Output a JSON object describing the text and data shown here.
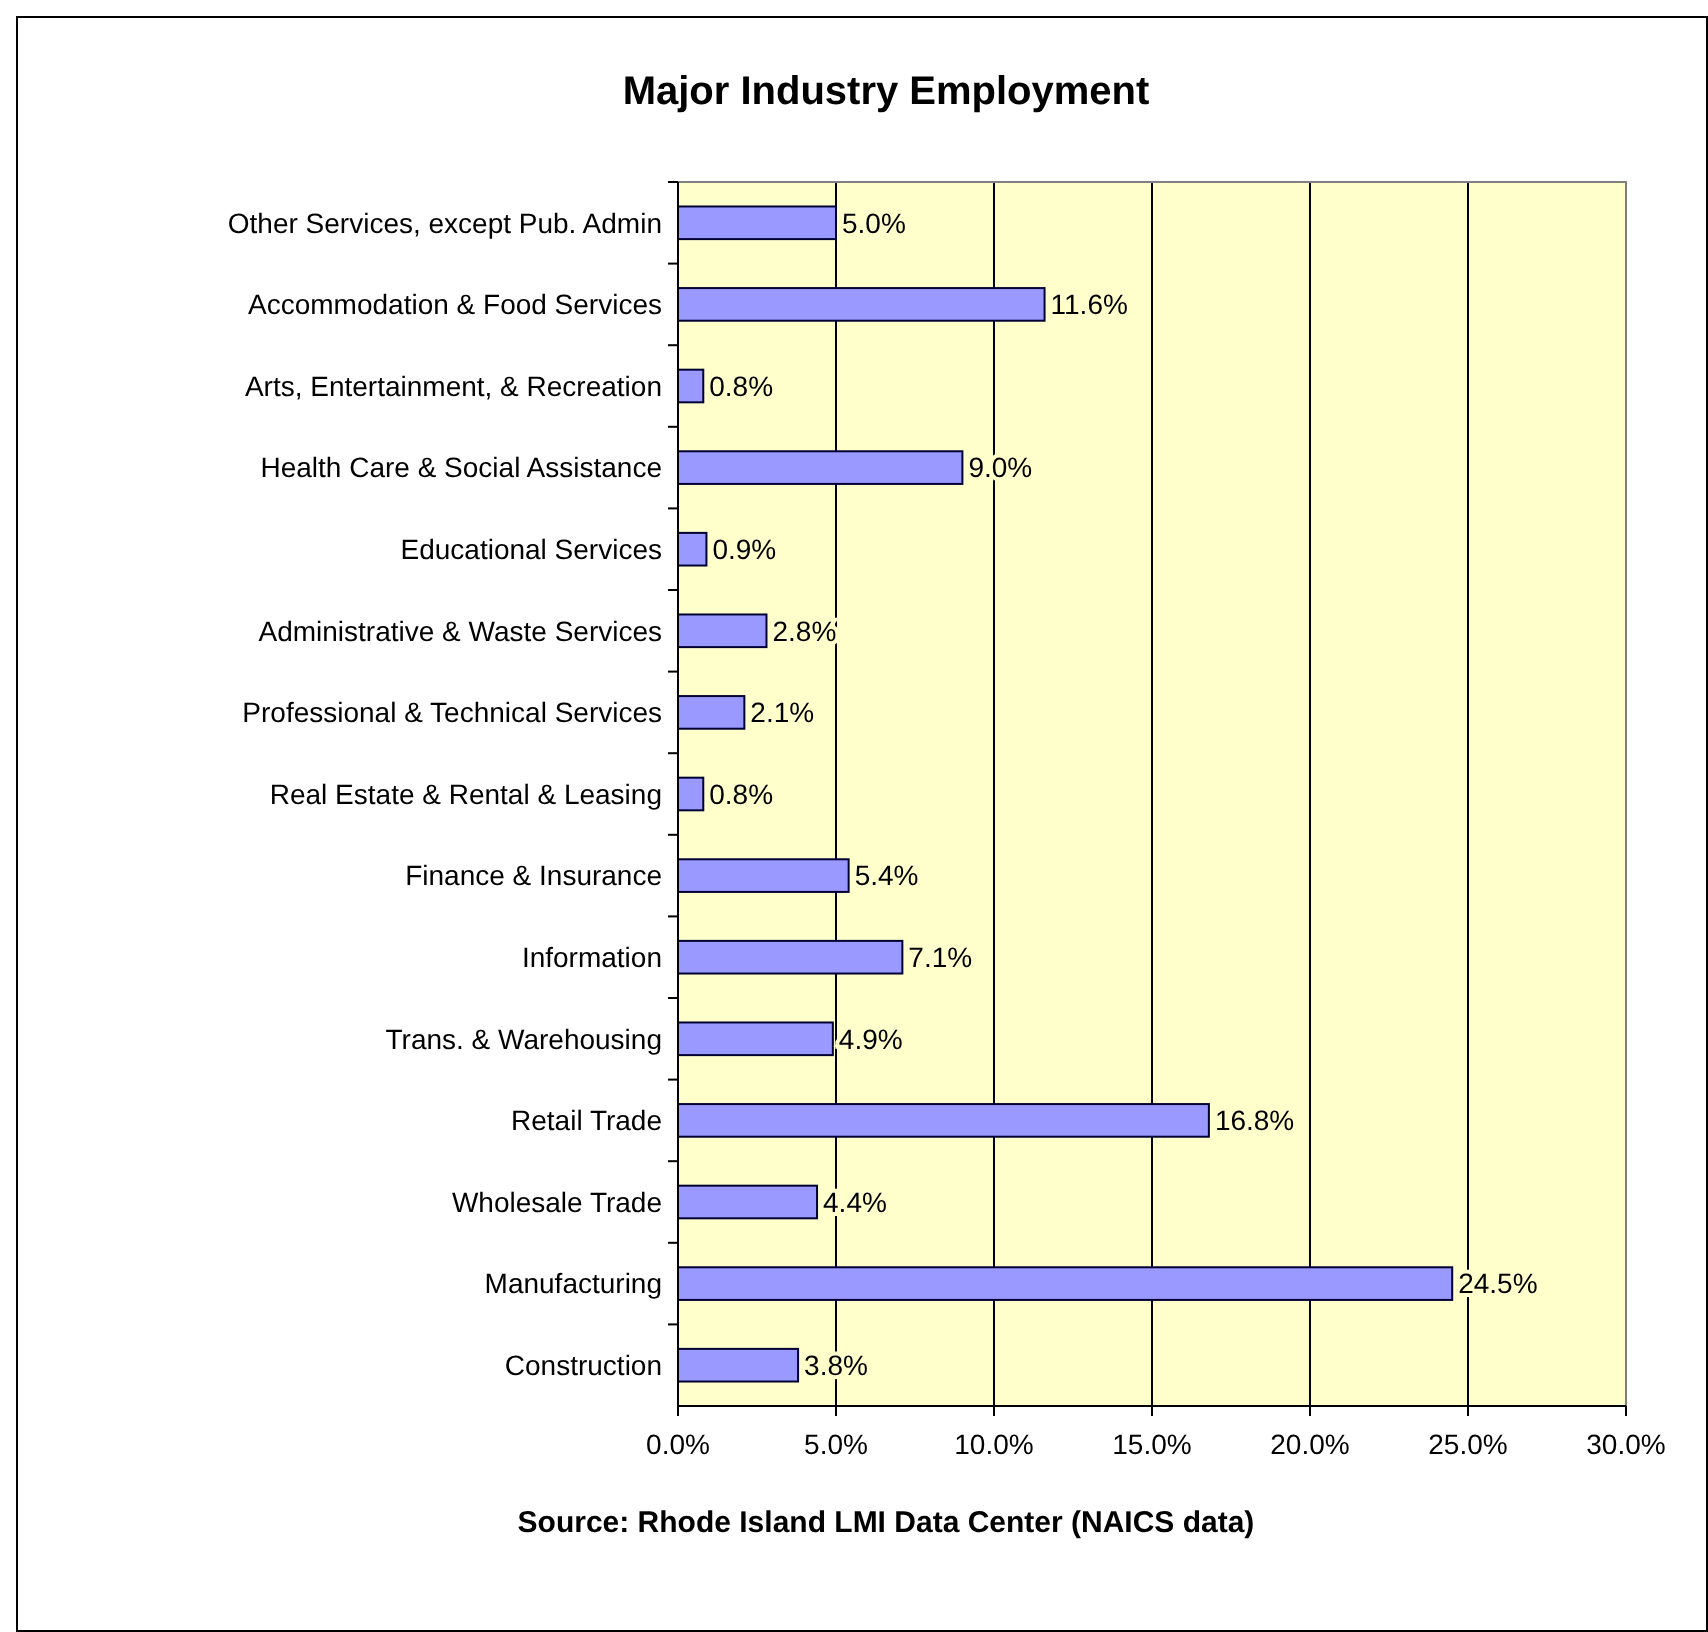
{
  "chart_data": {
    "type": "bar",
    "orientation": "horizontal",
    "title": "Major Industry Employment",
    "categories": [
      "Other Services, except Pub. Admin",
      "Accommodation & Food Services",
      "Arts, Entertainment, & Recreation",
      "Health Care & Social Assistance",
      "Educational Services",
      "Administrative & Waste Services",
      "Professional & Technical Services",
      "Real Estate & Rental & Leasing",
      "Finance & Insurance",
      "Information",
      "Trans. & Warehousing",
      "Retail Trade",
      "Wholesale Trade",
      "Manufacturing",
      "Construction"
    ],
    "values": [
      5.0,
      11.6,
      0.8,
      9.0,
      0.9,
      2.8,
      2.1,
      0.8,
      5.4,
      7.1,
      4.9,
      16.8,
      4.4,
      24.5,
      3.8
    ],
    "value_labels": [
      "5.0%",
      "11.6%",
      "0.8%",
      "9.0%",
      "0.9%",
      "2.8%",
      "2.1%",
      "0.8%",
      "5.4%",
      "7.1%",
      "4.9%",
      "16.8%",
      "4.4%",
      "24.5%",
      "3.8%"
    ],
    "color": "#9999ff",
    "xlim": [
      0,
      30
    ],
    "xticks": [
      {
        "value": 0,
        "label": "0.0%"
      },
      {
        "value": 5,
        "label": "5.0%"
      },
      {
        "value": 10,
        "label": "10.0%"
      },
      {
        "value": 15,
        "label": "15.0%"
      },
      {
        "value": 20,
        "label": "20.0%"
      },
      {
        "value": 25,
        "label": "25.0%"
      },
      {
        "value": 30,
        "label": "30.0%"
      }
    ],
    "grid": "x",
    "annotations": [
      "Source: Rhode Island LMI Data Center (NAICS data)"
    ]
  }
}
